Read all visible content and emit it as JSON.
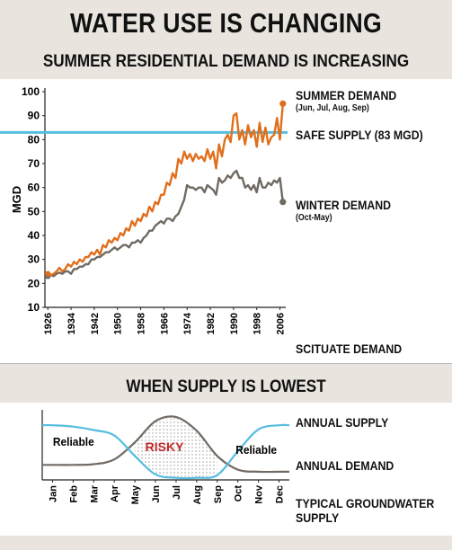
{
  "header": {
    "title": "WATER USE IS CHANGING",
    "subtitle": "SUMMER RESIDENTIAL DEMAND IS INCREASING"
  },
  "top_labels": {
    "summer": "SUMMER DEMAND",
    "summer_months": "(Jun, Jul, Aug, Sep)",
    "safe": "SAFE SUPPLY (83 MGD)",
    "winter": "WINTER DEMAND",
    "winter_months": "(Oct-May)",
    "footer": "SCITUATE DEMAND"
  },
  "section2": {
    "heading": "WHEN SUPPLY IS LOWEST",
    "supply_label": "ANNUAL SUPPLY",
    "demand_label": "ANNUAL DEMAND",
    "footer": "TYPICAL GROUNDWATER SUPPLY",
    "reliable_left": "Reliable",
    "risky": "RISKY",
    "reliable_right": "Reliable"
  },
  "colors": {
    "summer": "#e06f1c",
    "winter": "#716a63",
    "safe": "#55bde0",
    "risky_text": "#c22a2a"
  },
  "chart_data": [
    {
      "type": "line",
      "title": "SUMMER RESIDENTIAL DEMAND IS INCREASING",
      "ylabel": "MGD",
      "xlabel": "",
      "ylim": [
        10,
        100
      ],
      "yticks": [
        10,
        20,
        30,
        40,
        50,
        60,
        70,
        80,
        90,
        100
      ],
      "xlim": [
        1925,
        2008
      ],
      "xticks": [
        1926,
        1934,
        1942,
        1950,
        1958,
        1966,
        1974,
        1982,
        1990,
        1998,
        2006
      ],
      "reference_line": {
        "name": "SAFE SUPPLY (83 MGD)",
        "value": 83
      },
      "series": [
        {
          "name": "SUMMER DEMAND",
          "x": [
            1926,
            1927,
            1928,
            1929,
            1930,
            1931,
            1932,
            1933,
            1934,
            1935,
            1936,
            1937,
            1938,
            1939,
            1940,
            1941,
            1942,
            1943,
            1944,
            1945,
            1946,
            1947,
            1948,
            1949,
            1950,
            1951,
            1952,
            1953,
            1954,
            1955,
            1956,
            1957,
            1958,
            1959,
            1960,
            1961,
            1962,
            1963,
            1964,
            1965,
            1966,
            1967,
            1968,
            1969,
            1970,
            1971,
            1972,
            1973,
            1974,
            1975,
            1976,
            1977,
            1978,
            1979,
            1980,
            1981,
            1982,
            1983,
            1984,
            1985,
            1986,
            1987,
            1988,
            1989,
            1990,
            1991,
            1992,
            1993,
            1994,
            1995,
            1996,
            1997,
            1998,
            1999,
            2000,
            2001,
            2002,
            2003,
            2004,
            2005,
            2006,
            2007
          ],
          "values": [
            24,
            23.5,
            24,
            25,
            26.5,
            25,
            26,
            28,
            27,
            29,
            28,
            30,
            29,
            31,
            31,
            33,
            32,
            34,
            32,
            36,
            35,
            38,
            37,
            39,
            38,
            41,
            40,
            43,
            42,
            46,
            44,
            47,
            46,
            49,
            48,
            52,
            50,
            54,
            53,
            57,
            57,
            62,
            61,
            66,
            64,
            72,
            70,
            75,
            72,
            74,
            71,
            74,
            72,
            73,
            71,
            76,
            72,
            75,
            68,
            78,
            73,
            80,
            82,
            79,
            90,
            91,
            80,
            84,
            78,
            86,
            81,
            84,
            77,
            87,
            79,
            85,
            78,
            81,
            82,
            89,
            80,
            95
          ]
        },
        {
          "name": "WINTER DEMAND",
          "x": [
            1926,
            1927,
            1928,
            1929,
            1930,
            1931,
            1932,
            1933,
            1934,
            1935,
            1936,
            1937,
            1938,
            1939,
            1940,
            1941,
            1942,
            1943,
            1944,
            1945,
            1946,
            1947,
            1948,
            1949,
            1950,
            1951,
            1952,
            1953,
            1954,
            1955,
            1956,
            1957,
            1958,
            1959,
            1960,
            1961,
            1962,
            1963,
            1964,
            1965,
            1966,
            1967,
            1968,
            1969,
            1970,
            1971,
            1972,
            1973,
            1974,
            1975,
            1976,
            1977,
            1978,
            1979,
            1980,
            1981,
            1982,
            1983,
            1984,
            1985,
            1986,
            1987,
            1988,
            1989,
            1990,
            1991,
            1992,
            1993,
            1994,
            1995,
            1996,
            1997,
            1998,
            1999,
            2000,
            2001,
            2002,
            2003,
            2004,
            2005,
            2006,
            2007
          ],
          "values": [
            23,
            23.5,
            23,
            24,
            24.5,
            24,
            25,
            25,
            24,
            26,
            26,
            27,
            27,
            28,
            28,
            30,
            30,
            31,
            31,
            32,
            33,
            33,
            34,
            35,
            34,
            35,
            36,
            36,
            35,
            37,
            37,
            38,
            37,
            39,
            40,
            42,
            42,
            44,
            45,
            46,
            45,
            47,
            47,
            46,
            48,
            49,
            52,
            55,
            61,
            60,
            60,
            59,
            60,
            60,
            58,
            61,
            60,
            59,
            57,
            64,
            62,
            63,
            65,
            64,
            66,
            67,
            64,
            64,
            60,
            61,
            59,
            61,
            58,
            64,
            60,
            60,
            62,
            61,
            63,
            62,
            64,
            54
          ]
        }
      ]
    },
    {
      "type": "area",
      "title": "WHEN SUPPLY IS LOWEST",
      "categories": [
        "Jan",
        "Feb",
        "Mar",
        "Apr",
        "May",
        "Jun",
        "Jul",
        "Aug",
        "Sep",
        "Oct",
        "Nov",
        "Dec"
      ],
      "series": [
        {
          "name": "ANNUAL SUPPLY",
          "values": [
            0.8,
            0.78,
            0.73,
            0.65,
            0.35,
            0.08,
            0.03,
            0.03,
            0.07,
            0.42,
            0.74,
            0.8
          ]
        },
        {
          "name": "ANNUAL DEMAND",
          "values": [
            0.22,
            0.22,
            0.23,
            0.3,
            0.55,
            0.86,
            0.92,
            0.72,
            0.35,
            0.15,
            0.12,
            0.12
          ]
        }
      ],
      "annotations": [
        "Reliable",
        "RISKY",
        "Reliable"
      ]
    }
  ]
}
